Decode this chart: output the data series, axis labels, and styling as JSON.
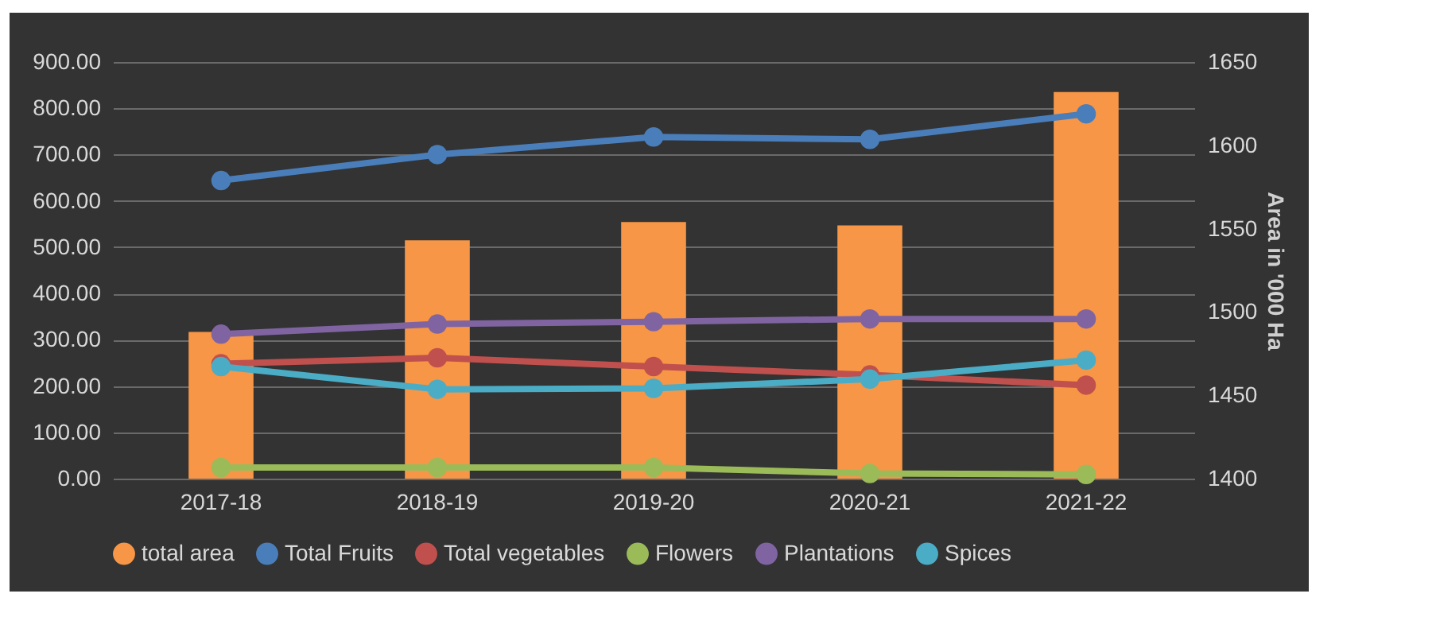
{
  "chart_data": {
    "type": "bar",
    "categories": [
      "2017-18",
      "2018-19",
      "2019-20",
      "2020-21",
      "2021-22"
    ],
    "series": [
      {
        "name": "total area",
        "axis": "y2",
        "color": "#f79646",
        "values": [
          1488,
          1543,
          1554,
          1552,
          1632
        ]
      },
      {
        "name": "Total Fruits",
        "type": "line",
        "color": "#4a7ebb",
        "values": [
          644,
          700,
          738,
          733,
          788
        ]
      },
      {
        "name": "Total vegetables",
        "type": "line",
        "color": "#c0504d",
        "values": [
          248,
          261,
          242,
          224,
          202
        ]
      },
      {
        "name": "Flowers",
        "type": "line",
        "color": "#9bbb59",
        "values": [
          24,
          24,
          24,
          11,
          9
        ]
      },
      {
        "name": "Plantations",
        "type": "line",
        "color": "#8064a2",
        "values": [
          312,
          334,
          339,
          345,
          345
        ]
      },
      {
        "name": "Spices",
        "type": "line",
        "color": "#4bacc6",
        "values": [
          242,
          193,
          195,
          215,
          256
        ]
      }
    ],
    "ylim": [
      0,
      900
    ],
    "yticks": [
      {
        "value": 0,
        "label": "0.00"
      },
      {
        "value": 100,
        "label": "100.00"
      },
      {
        "value": 200,
        "label": "200.00"
      },
      {
        "value": 300,
        "label": "300.00"
      },
      {
        "value": 400,
        "label": "400.00"
      },
      {
        "value": 500,
        "label": "500.00"
      },
      {
        "value": 600,
        "label": "600.00"
      },
      {
        "value": 700,
        "label": "700.00"
      },
      {
        "value": 800,
        "label": "800.00"
      },
      {
        "value": 900,
        "label": "900.00"
      }
    ],
    "y2lim": [
      1400,
      1650
    ],
    "y2ticks": [
      1400,
      1450,
      1500,
      1550,
      1600,
      1650
    ],
    "y2label": "Area in '000 Ha",
    "grid": true,
    "legend": "bottom",
    "marker": "circle"
  }
}
